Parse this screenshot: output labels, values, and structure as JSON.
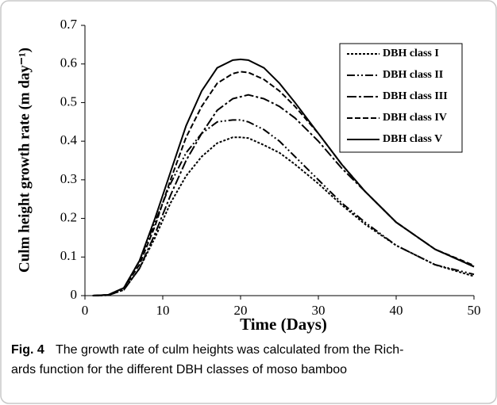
{
  "chart_data": {
    "type": "line",
    "xlabel": "Time (Days)",
    "ylabel": "Culm height growth rate (m day⁻¹)",
    "x": [
      1,
      3,
      5,
      7,
      9,
      11,
      13,
      15,
      17,
      19,
      20,
      21,
      23,
      25,
      27,
      30,
      33,
      36,
      40,
      45,
      50
    ],
    "series": [
      {
        "name": "DBH class I",
        "color": "#000000",
        "dash": "3,2",
        "values": [
          0,
          0.001,
          0.015,
          0.07,
          0.15,
          0.24,
          0.31,
          0.36,
          0.395,
          0.41,
          0.41,
          0.408,
          0.39,
          0.37,
          0.34,
          0.29,
          0.235,
          0.185,
          0.13,
          0.08,
          0.05
        ]
      },
      {
        "name": "DBH class II",
        "color": "#000000",
        "dash": "10,3,2,3,2,3",
        "values": [
          0,
          0.002,
          0.02,
          0.09,
          0.19,
          0.29,
          0.37,
          0.42,
          0.45,
          0.455,
          0.455,
          0.45,
          0.43,
          0.4,
          0.36,
          0.3,
          0.24,
          0.19,
          0.13,
          0.08,
          0.055
        ]
      },
      {
        "name": "DBH class III",
        "color": "#000000",
        "dash": "12,3,3,3",
        "values": [
          0,
          0.001,
          0.015,
          0.07,
          0.16,
          0.26,
          0.35,
          0.42,
          0.48,
          0.51,
          0.515,
          0.52,
          0.51,
          0.49,
          0.46,
          0.4,
          0.33,
          0.27,
          0.19,
          0.12,
          0.075
        ]
      },
      {
        "name": "DBH class IV",
        "color": "#000000",
        "dash": "7,3",
        "values": [
          0,
          0.002,
          0.02,
          0.08,
          0.18,
          0.3,
          0.41,
          0.49,
          0.55,
          0.575,
          0.58,
          0.578,
          0.56,
          0.53,
          0.49,
          0.42,
          0.34,
          0.27,
          0.19,
          0.12,
          0.078
        ]
      },
      {
        "name": "DBH class V",
        "color": "#000000",
        "dash": "none",
        "values": [
          0,
          0.002,
          0.02,
          0.09,
          0.2,
          0.32,
          0.44,
          0.53,
          0.59,
          0.61,
          0.612,
          0.61,
          0.59,
          0.55,
          0.5,
          0.42,
          0.34,
          0.27,
          0.19,
          0.12,
          0.075
        ]
      }
    ],
    "xlim": [
      0,
      50
    ],
    "xticks": [
      0,
      10,
      20,
      30,
      40,
      50
    ],
    "ylim": [
      0,
      0.7
    ],
    "yticks": [
      0,
      0.1,
      0.2,
      0.3,
      0.4,
      0.5,
      0.6,
      0.7
    ],
    "legend": "upper right"
  },
  "caption": {
    "label": "Fig. 4",
    "lines": [
      "The growth rate of culm heights was calculated from the Rich-",
      "ards function for the different DBH classes of moso bamboo"
    ]
  }
}
